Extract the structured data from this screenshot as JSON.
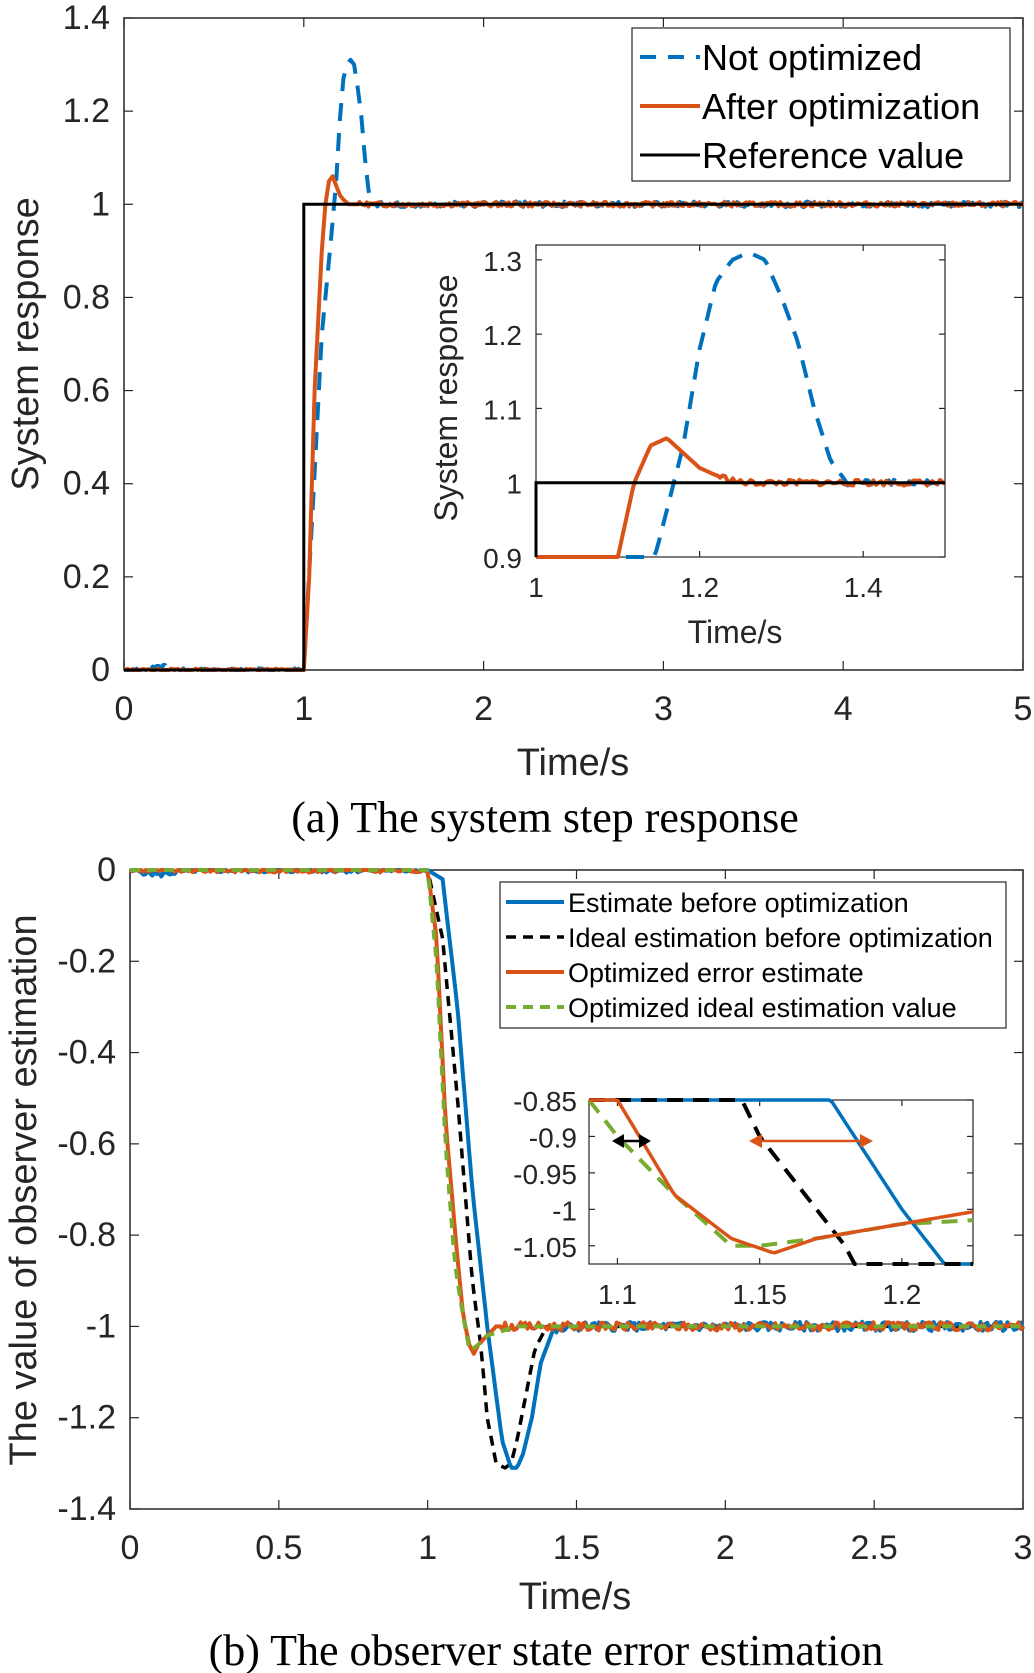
{
  "chart_data": [
    {
      "type": "line",
      "caption": "(a) The system step response",
      "xlabel": "Time/s",
      "ylabel": "System response",
      "xlim": [
        0,
        5
      ],
      "ylim": [
        0,
        1.4
      ],
      "xticks": [
        "0",
        "1",
        "2",
        "3",
        "4",
        "5"
      ],
      "yticks": [
        "0",
        "0.2",
        "0.4",
        "0.6",
        "0.8",
        "1",
        "1.2",
        "1.4"
      ],
      "legend_position": "top-right",
      "series": [
        {
          "name": "Not optimized",
          "color": "#0072BD",
          "style": "dashed",
          "x": [
            0,
            0.1,
            0.2,
            0.3,
            0.5,
            0.8,
            1.0,
            1.05,
            1.1,
            1.15,
            1.18,
            1.2,
            1.22,
            1.24,
            1.26,
            1.28,
            1.3,
            1.32,
            1.34,
            1.36,
            1.38,
            1.4,
            1.5,
            2.0,
            3.0,
            4.0,
            5.0
          ],
          "y": [
            0,
            0,
            0.01,
            0,
            0,
            0,
            0,
            0.35,
            0.72,
            0.92,
            1.05,
            1.18,
            1.27,
            1.3,
            1.31,
            1.3,
            1.25,
            1.19,
            1.1,
            1.03,
            1.0,
            1.0,
            1.0,
            1.0,
            1.0,
            1.0,
            1.0
          ]
        },
        {
          "name": "After optimization",
          "color": "#D95319",
          "style": "solid",
          "x": [
            0,
            0.2,
            0.5,
            0.9,
            1.0,
            1.03,
            1.06,
            1.1,
            1.12,
            1.14,
            1.16,
            1.18,
            1.2,
            1.22,
            1.25,
            1.3,
            1.4,
            1.5,
            2.0,
            3.0,
            4.0,
            5.0
          ],
          "y": [
            0,
            0,
            0,
            0,
            0,
            0.2,
            0.6,
            0.9,
            1.0,
            1.05,
            1.06,
            1.04,
            1.02,
            1.01,
            1.0,
            1.0,
            1.0,
            1.0,
            1.0,
            1.0,
            1.0,
            1.0
          ]
        },
        {
          "name": "Reference value",
          "color": "#000000",
          "style": "solid",
          "x": [
            0,
            1,
            1,
            5
          ],
          "y": [
            0,
            0,
            1,
            1
          ]
        }
      ],
      "inset": {
        "xlabel": "Time/s",
        "ylabel": "System response",
        "xlim": [
          1,
          1.5
        ],
        "ylim": [
          0.9,
          1.32
        ],
        "xticks": [
          "1",
          "1.2",
          "1.4"
        ],
        "yticks": [
          "0.9",
          "1",
          "1.1",
          "1.2",
          "1.3"
        ]
      }
    },
    {
      "type": "line",
      "caption": "(b) The observer state error estimation",
      "xlabel": "Time/s",
      "ylabel": "The value of observer estimation",
      "xlim": [
        0,
        3
      ],
      "ylim": [
        -1.4,
        0
      ],
      "xticks": [
        "0",
        "0.5",
        "1",
        "1.5",
        "2",
        "2.5",
        "3"
      ],
      "yticks": [
        "0",
        "-0.2",
        "-0.4",
        "-0.6",
        "-0.8",
        "-1",
        "-1.2",
        "-1.4"
      ],
      "legend_position": "top-right",
      "series": [
        {
          "name": "Estimate before optimization",
          "color": "#0072BD",
          "style": "solid",
          "x": [
            0,
            0.1,
            0.2,
            0.3,
            0.5,
            0.7,
            1.0,
            1.05,
            1.1,
            1.15,
            1.2,
            1.25,
            1.28,
            1.3,
            1.32,
            1.35,
            1.38,
            1.42,
            1.5,
            2.0,
            2.5,
            3.0
          ],
          "y": [
            0,
            -0.01,
            0,
            0,
            0,
            0,
            0,
            -0.02,
            -0.3,
            -0.7,
            -1.0,
            -1.25,
            -1.31,
            -1.31,
            -1.28,
            -1.2,
            -1.08,
            -1.01,
            -1.0,
            -1.0,
            -1.0,
            -1.0
          ]
        },
        {
          "name": "Ideal estimation before optimization",
          "color": "#000000",
          "style": "dashed",
          "x": [
            0,
            1.0,
            1.05,
            1.1,
            1.15,
            1.18,
            1.2,
            1.23,
            1.26,
            1.28,
            1.3,
            1.33,
            1.36,
            1.4,
            1.5,
            3.0
          ],
          "y": [
            0,
            0,
            -0.15,
            -0.5,
            -0.9,
            -1.05,
            -1.2,
            -1.3,
            -1.31,
            -1.3,
            -1.25,
            -1.15,
            -1.05,
            -1.0,
            -1.0,
            -1.0
          ]
        },
        {
          "name": "Optimized error estimate",
          "color": "#D95319",
          "style": "solid",
          "x": [
            0,
            0.5,
            1.0,
            1.03,
            1.06,
            1.1,
            1.12,
            1.14,
            1.155,
            1.17,
            1.2,
            1.23,
            1.3,
            1.5,
            2.0,
            3.0
          ],
          "y": [
            0,
            0,
            0,
            -0.15,
            -0.55,
            -0.85,
            -0.98,
            -1.04,
            -1.06,
            -1.04,
            -1.02,
            -1.0,
            -1.0,
            -1.0,
            -1.0,
            -1.0
          ]
        },
        {
          "name": "Optimized ideal estimation value",
          "color": "#77AC30",
          "style": "dashed",
          "x": [
            0,
            0.5,
            1.0,
            1.03,
            1.06,
            1.09,
            1.1,
            1.12,
            1.14,
            1.15,
            1.17,
            1.2,
            1.3,
            2.0,
            3.0
          ],
          "y": [
            0,
            0,
            0,
            -0.2,
            -0.6,
            -0.85,
            -0.9,
            -0.98,
            -1.05,
            -1.05,
            -1.04,
            -1.02,
            -1.0,
            -1.0,
            -1.0
          ]
        }
      ],
      "inset": {
        "xlim": [
          1.09,
          1.225
        ],
        "ylim": [
          -1.075,
          -0.85
        ],
        "xticks": [
          "1.1",
          "1.15",
          "1.2"
        ],
        "yticks": [
          "-0.85",
          "-0.9",
          "-0.95",
          "-1",
          "-1.05"
        ]
      }
    }
  ]
}
